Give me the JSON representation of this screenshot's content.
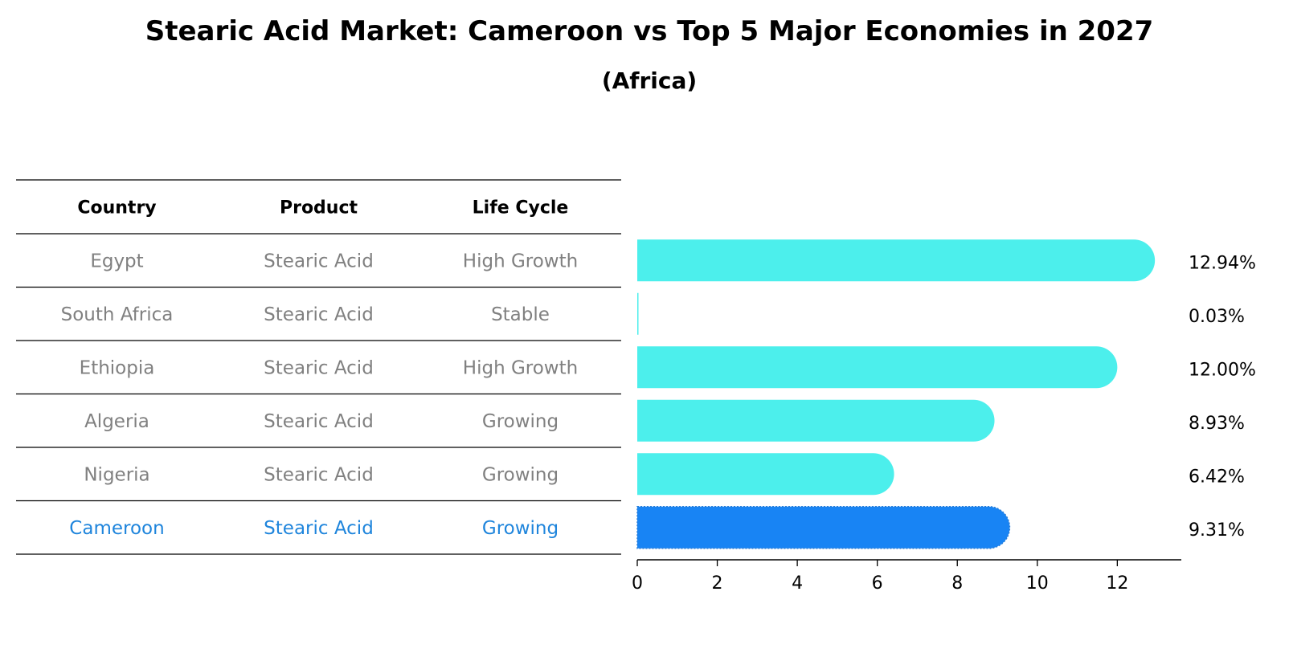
{
  "title": "Stearic Acid Market: Cameroon vs Top 5 Major Economies in 2027",
  "subtitle": "(Africa)",
  "table": {
    "headers": [
      "Country",
      "Product",
      "Life Cycle"
    ],
    "rows": [
      {
        "country": "Egypt",
        "product": "Stearic Acid",
        "life_cycle": "High Growth",
        "highlight": false
      },
      {
        "country": "South Africa",
        "product": "Stearic Acid",
        "life_cycle": "Stable",
        "highlight": false
      },
      {
        "country": "Ethiopia",
        "product": "Stearic Acid",
        "life_cycle": "High Growth",
        "highlight": false
      },
      {
        "country": "Algeria",
        "product": "Stearic Acid",
        "life_cycle": "Growing",
        "highlight": false
      },
      {
        "country": "Nigeria",
        "product": "Stearic Acid",
        "life_cycle": "Growing",
        "highlight": false
      },
      {
        "country": "Cameroon",
        "product": "Stearic Acid",
        "life_cycle": "Growing",
        "highlight": true
      }
    ]
  },
  "colors": {
    "bar": "#4cefec",
    "highlight_bar": "#1884f4",
    "highlight_text": "#1f85dc",
    "muted_text": "#808080"
  },
  "chart_data": {
    "type": "bar",
    "orientation": "horizontal",
    "title": "Stearic Acid Market: Cameroon vs Top 5 Major Economies in 2027",
    "subtitle": "(Africa)",
    "categories": [
      "Egypt",
      "South Africa",
      "Ethiopia",
      "Algeria",
      "Nigeria",
      "Cameroon"
    ],
    "values": [
      12.94,
      0.03,
      12.0,
      8.93,
      6.42,
      9.31
    ],
    "value_labels": [
      "12.94%",
      "0.03%",
      "12.00%",
      "8.93%",
      "6.42%",
      "9.31%"
    ],
    "highlight": "Cameroon",
    "xlim": [
      0,
      13.6
    ],
    "xticks": [
      0,
      2,
      4,
      6,
      8,
      10,
      12
    ],
    "xlabel": "",
    "ylabel": "",
    "grid": false
  }
}
